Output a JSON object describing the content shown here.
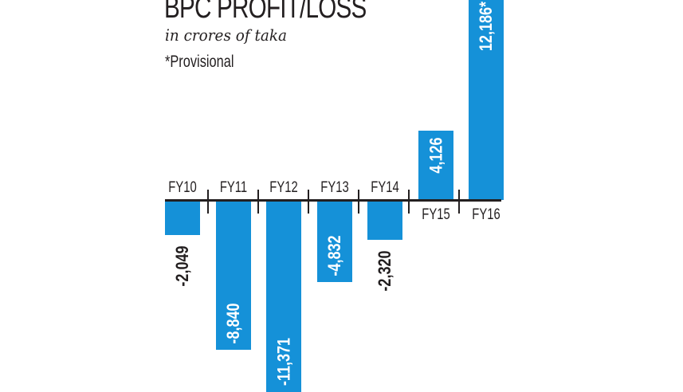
{
  "header": {
    "title": "BPC PROFIT/LOSS",
    "subtitle": "in crores of taka",
    "note": "*Provisional"
  },
  "colors": {
    "bar": "#1591d8",
    "text": "#231f20",
    "axis": "#231f20"
  },
  "bars": [
    {
      "category": "FY10",
      "value": -2049,
      "label": "-2,049",
      "label_inside": false
    },
    {
      "category": "FY11",
      "value": -8840,
      "label": "-8,840",
      "label_inside": true
    },
    {
      "category": "FY12",
      "value": -11371,
      "label": "-11,371",
      "label_inside": true
    },
    {
      "category": "FY13",
      "value": -4832,
      "label": "-4,832",
      "label_inside": true
    },
    {
      "category": "FY14",
      "value": -2320,
      "label": "-2,320",
      "label_inside": false
    },
    {
      "category": "FY15",
      "value": 4126,
      "label": "4,126",
      "label_inside": true
    },
    {
      "category": "FY16",
      "value": 12186,
      "label": "12,186*",
      "label_inside": true
    }
  ],
  "chart_data": {
    "type": "bar",
    "title": "BPC PROFIT/LOSS",
    "subtitle": "in crores of taka",
    "annotation": "*Provisional",
    "xlabel": "",
    "ylabel": "",
    "categories": [
      "FY10",
      "FY11",
      "FY12",
      "FY13",
      "FY14",
      "FY15",
      "FY16"
    ],
    "values": [
      -2049,
      -8840,
      -11371,
      -4832,
      -2320,
      4126,
      12186
    ],
    "data_labels": [
      "-2,049",
      "-8,840",
      "-11,371",
      "-4,832",
      "-2,320",
      "4,126",
      "12,186*"
    ],
    "provisional": [
      "FY16"
    ],
    "grid": false,
    "legend": null,
    "orientation": "vertical",
    "ylim": [
      -11371,
      12186
    ]
  }
}
